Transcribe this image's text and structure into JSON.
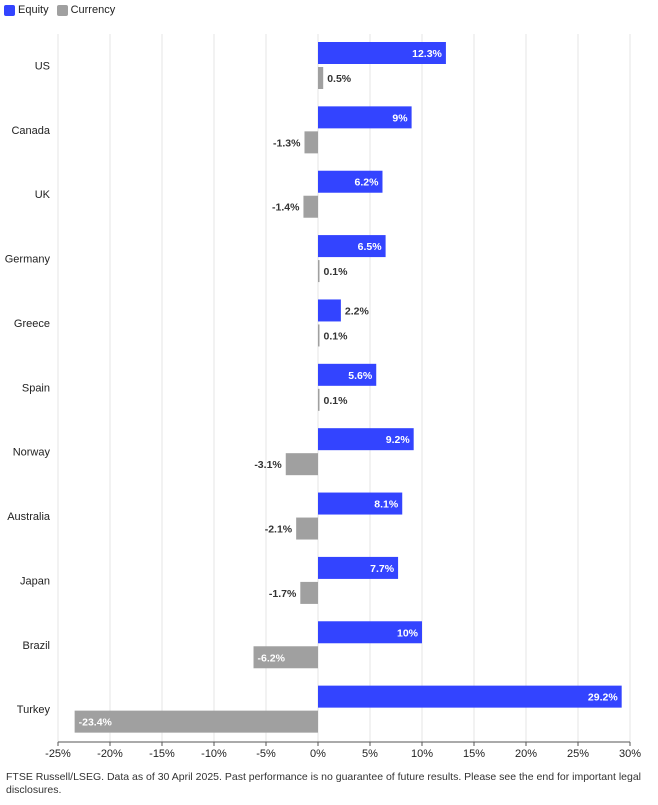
{
  "legend": [
    {
      "label": "Equity",
      "color": "#3344ff"
    },
    {
      "label": "Currency",
      "color": "#a0a0a0"
    }
  ],
  "chart_data": {
    "type": "bar",
    "orientation": "horizontal",
    "categories": [
      "US",
      "Canada",
      "UK",
      "Germany",
      "Greece",
      "Spain",
      "Norway",
      "Australia",
      "Japan",
      "Brazil",
      "Turkey"
    ],
    "series": [
      {
        "name": "Equity",
        "color": "#3344ff",
        "values": [
          12.3,
          9,
          6.2,
          6.5,
          2.2,
          5.6,
          9.2,
          8.1,
          7.7,
          10,
          29.2
        ],
        "labels": [
          "12.3%",
          "9%",
          "6.2%",
          "6.5%",
          "2.2%",
          "5.6%",
          "9.2%",
          "8.1%",
          "7.7%",
          "10%",
          "29.2%"
        ]
      },
      {
        "name": "Currency",
        "color": "#a0a0a0",
        "values": [
          0.5,
          -1.3,
          -1.4,
          0.1,
          0.1,
          0.1,
          -3.1,
          -2.1,
          -1.7,
          -6.2,
          -23.4
        ],
        "labels": [
          "0.5%",
          "-1.3%",
          "-1.4%",
          "0.1%",
          "0.1%",
          "0.1%",
          "-3.1%",
          "-2.1%",
          "-1.7%",
          "-6.2%",
          "-23.4%"
        ]
      }
    ],
    "xlim": [
      -25,
      30
    ],
    "xticks": [
      -25,
      -20,
      -15,
      -10,
      -5,
      0,
      5,
      10,
      15,
      20,
      25,
      30
    ],
    "xtick_labels": [
      "-25%",
      "-20%",
      "-15%",
      "-10%",
      "-5%",
      "0%",
      "5%",
      "10%",
      "15%",
      "20%",
      "25%",
      "30%"
    ],
    "grid": true
  },
  "footnote": "FTSE Russell/LSEG. Data as of 30 April 2025. Past performance is no guarantee of future results. Please see the end for important legal disclosures."
}
